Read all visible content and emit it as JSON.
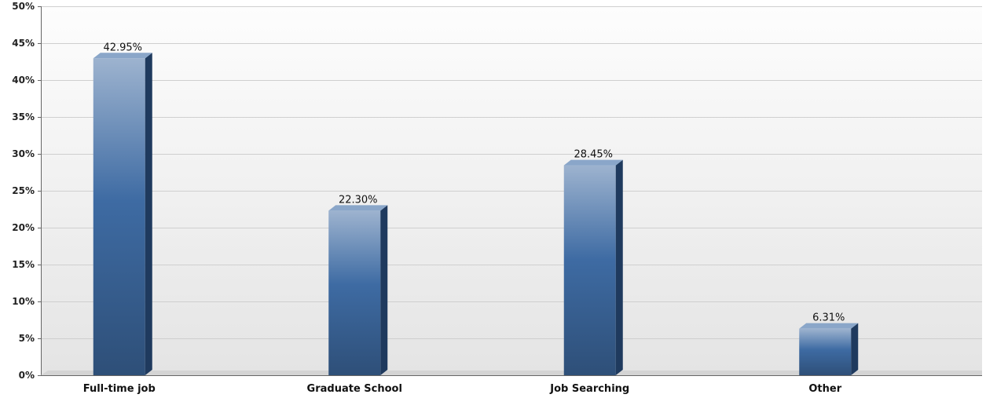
{
  "chart_data": {
    "type": "bar",
    "title": "",
    "xlabel": "",
    "ylabel": "",
    "categories": [
      "Full-time job",
      "Graduate School",
      "Job Searching",
      "Other"
    ],
    "values": [
      42.95,
      22.3,
      28.45,
      6.31
    ],
    "value_labels": [
      "42.95%",
      "22.30%",
      "28.45%",
      "6.31%"
    ],
    "ylim": [
      0,
      50
    ],
    "yticks": [
      0,
      5,
      10,
      15,
      20,
      25,
      30,
      35,
      40,
      45,
      50
    ],
    "ytick_labels": [
      "0%",
      "5%",
      "10%",
      "15%",
      "20%",
      "25%",
      "30%",
      "35%",
      "40%",
      "45%",
      "50%"
    ],
    "grid": true,
    "legend": "none",
    "style": "3d-bar",
    "colors": {
      "bar_light": "#9db3cf",
      "bar_mid": "#3e6ba3",
      "bar_dark": "#2e4f78",
      "bar_side": "#1f3a5e",
      "bar_top": "#8aa6c9",
      "grid": "#cfcfcf",
      "plot_bg_top": "#fdfdfd",
      "plot_bg_bottom": "#e4e4e4",
      "axis": "#666666"
    }
  }
}
